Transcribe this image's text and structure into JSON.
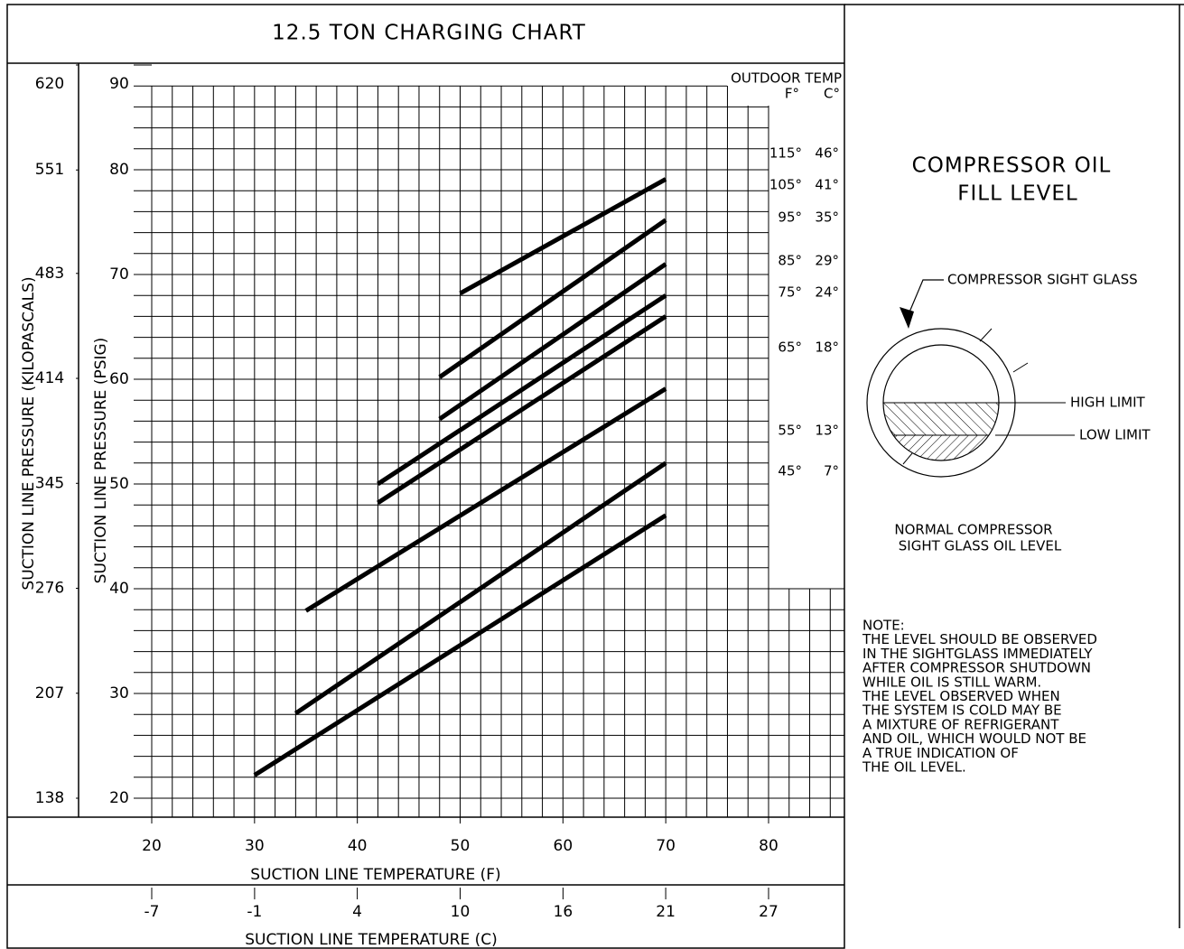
{
  "chart_data": {
    "type": "line",
    "title": "12.5 TON CHARGING CHART",
    "xlabel": "SUCTION LINE TEMPERATURE (F)",
    "x2label": "SUCTION LINE TEMPERATURE (C)",
    "ylabel": "SUCTION LINE PRESSURE (PSIG)",
    "y2label": "SUCTION LINE PRESSURE (KILOPASCALS)",
    "legend_title": "OUTDOOR TEMP",
    "legend_units": [
      "F°",
      "C°"
    ],
    "xlim": [
      20,
      80
    ],
    "xticks": [
      20,
      30,
      40,
      50,
      60,
      70,
      80
    ],
    "x2lim": [
      -6.67,
      26.67
    ],
    "x2ticks": [
      {
        "value": -6.67,
        "label": "-7"
      },
      {
        "value": -1.11,
        "label": "-1"
      },
      {
        "value": 4.44,
        "label": "4"
      },
      {
        "value": 10,
        "label": "10"
      },
      {
        "value": 15.56,
        "label": "16"
      },
      {
        "value": 21.11,
        "label": "21"
      },
      {
        "value": 26.67,
        "label": "27"
      }
    ],
    "ylim": [
      20,
      90
    ],
    "yticks": [
      20,
      30,
      40,
      50,
      60,
      70,
      80,
      90
    ],
    "y2lim": [
      138,
      620
    ],
    "y2ticks": [
      138,
      207,
      276,
      345,
      414,
      483,
      551,
      620
    ],
    "grid": true,
    "series": [
      {
        "name": "115°",
        "celsius": "46°",
        "color": "#000000",
        "x": [
          50,
          70
        ],
        "values": [
          68.2,
          79.1
        ]
      },
      {
        "name": "105°",
        "celsius": "41°",
        "color": "#000000",
        "x": [
          48,
          70
        ],
        "values": [
          60.2,
          75.2
        ]
      },
      {
        "name": "95°",
        "celsius": "35°",
        "color": "#000000",
        "x": [
          48,
          70
        ],
        "values": [
          56.2,
          71.0
        ]
      },
      {
        "name": "85°",
        "celsius": "29°",
        "color": "#000000",
        "x": [
          42,
          70
        ],
        "values": [
          50.0,
          68.0
        ]
      },
      {
        "name": "75°",
        "celsius": "24°",
        "color": "#000000",
        "x": [
          42,
          70
        ],
        "values": [
          48.2,
          66.0
        ]
      },
      {
        "name": "65°",
        "celsius": "18°",
        "color": "#000000",
        "x": [
          35,
          70
        ],
        "values": [
          37.9,
          59.1
        ]
      },
      {
        "name": "55°",
        "celsius": "13°",
        "color": "#000000",
        "x": [
          34,
          70
        ],
        "values": [
          28.1,
          52.0
        ]
      },
      {
        "name": "45°",
        "celsius": "7°",
        "color": "#000000",
        "x": [
          30,
          70
        ],
        "values": [
          22.2,
          47.0
        ]
      }
    ]
  },
  "side_panel": {
    "title": [
      "COMPRESSOR OIL",
      "FILL LEVEL"
    ],
    "sight_glass_label": "COMPRESSOR SIGHT GLASS",
    "high_limit": "HIGH LIMIT",
    "low_limit": "LOW LIMIT",
    "caption": [
      "NORMAL COMPRESSOR",
      "SIGHT GLASS OIL LEVEL"
    ],
    "note": [
      "NOTE:",
      "THE LEVEL SHOULD BE OBSERVED",
      "IN THE SIGHTGLASS IMMEDIATELY",
      "AFTER COMPRESSOR SHUTDOWN",
      "WHILE OIL IS STILL WARM.",
      "THE LEVEL OBSERVED WHEN",
      "THE SYSTEM IS COLD MAY BE",
      "A MIXTURE OF REFRIGERANT",
      "AND OIL, WHICH WOULD NOT BE",
      "A TRUE INDICATION OF",
      "THE OIL LEVEL."
    ]
  }
}
